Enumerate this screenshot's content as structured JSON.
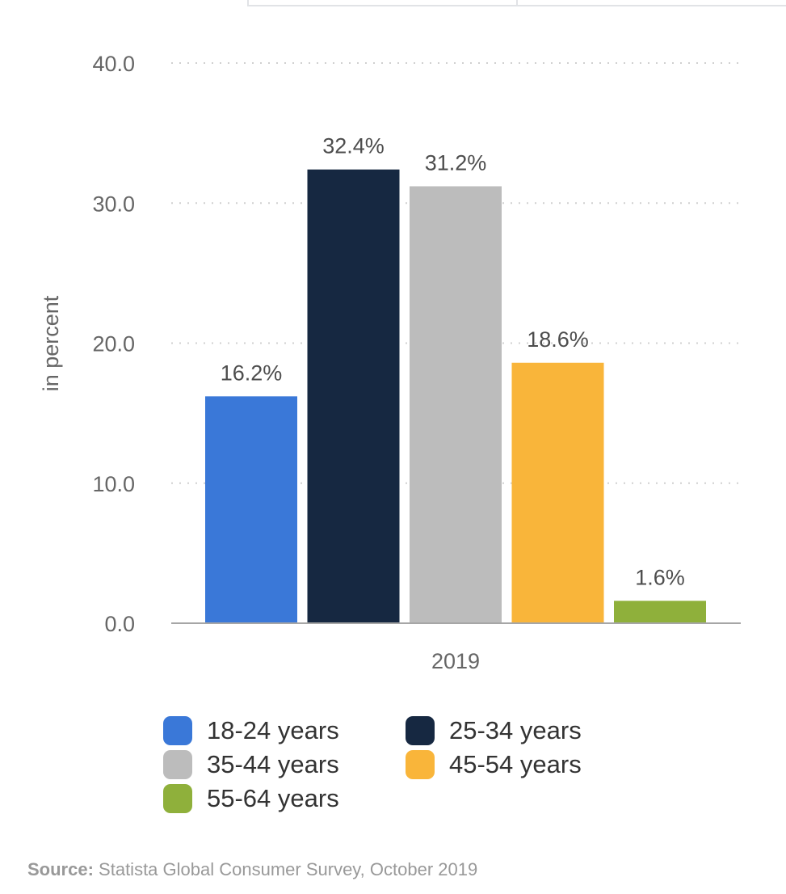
{
  "chart_data": {
    "type": "bar",
    "categories": [
      "2019"
    ],
    "series": [
      {
        "name": "18-24 years",
        "values": [
          16.2
        ],
        "label": "16.2%",
        "color": "#3a78d8"
      },
      {
        "name": "25-34 years",
        "values": [
          32.4
        ],
        "label": "32.4%",
        "color": "#162841"
      },
      {
        "name": "35-44 years",
        "values": [
          31.2
        ],
        "label": "31.2%",
        "color": "#bcbcbc"
      },
      {
        "name": "45-54 years",
        "values": [
          18.6
        ],
        "label": "18.6%",
        "color": "#f9b53a"
      },
      {
        "name": "55-64 years",
        "values": [
          1.6
        ],
        "label": "1.6%",
        "color": "#8fb03b"
      }
    ],
    "ylabel": "in percent",
    "xlabel": "",
    "ylim": [
      0,
      40
    ],
    "yticks": [
      "0.0",
      "10.0",
      "20.0",
      "30.0",
      "40.0"
    ],
    "grid": true,
    "legend_position": "bottom"
  },
  "source": {
    "label": "Source:",
    "text": "Statista Global Consumer Survey, October 2019"
  }
}
